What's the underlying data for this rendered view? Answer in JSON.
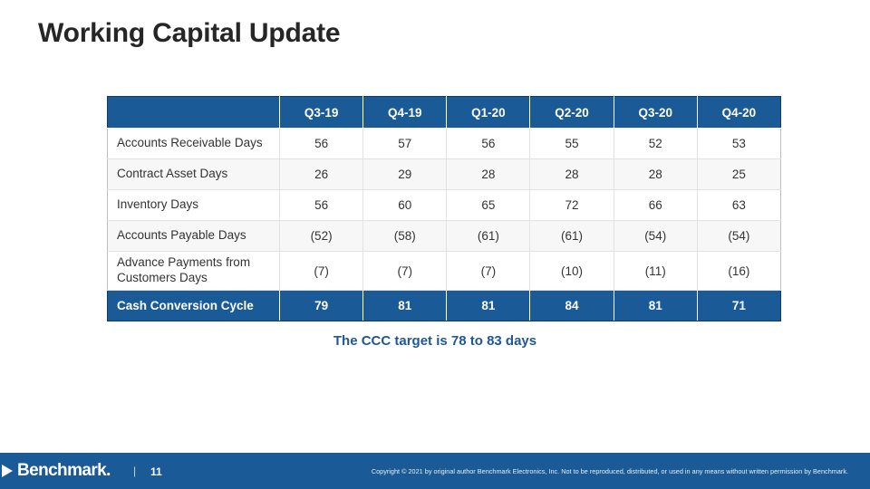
{
  "title": "Working Capital Update",
  "table": {
    "headers": [
      "",
      "Q3-19",
      "Q4-19",
      "Q1-20",
      "Q2-20",
      "Q3-20",
      "Q4-20"
    ],
    "rows": [
      {
        "label": "Accounts Receivable Days",
        "values": [
          "56",
          "57",
          "56",
          "55",
          "52",
          "53"
        ]
      },
      {
        "label": "Contract Asset Days",
        "values": [
          "26",
          "29",
          "28",
          "28",
          "28",
          "25"
        ]
      },
      {
        "label": "Inventory Days",
        "values": [
          "56",
          "60",
          "65",
          "72",
          "66",
          "63"
        ]
      },
      {
        "label": "Accounts Payable Days",
        "values": [
          "(52)",
          "(58)",
          "(61)",
          "(61)",
          "(54)",
          "(54)"
        ]
      },
      {
        "label": "Advance Payments from Customers Days",
        "values": [
          "(7)",
          "(7)",
          "(7)",
          "(10)",
          "(11)",
          "(16)"
        ]
      }
    ],
    "total": {
      "label": "Cash Conversion Cycle",
      "values": [
        "79",
        "81",
        "81",
        "84",
        "81",
        "71"
      ]
    }
  },
  "note": "The CCC target is 78 to 83 days",
  "footer": {
    "logo_text": "Benchmark.",
    "separator": "|",
    "page_number": "11",
    "copyright": "Copyright © 2021 by original author Benchmark Electronics, Inc. Not to be reproduced, distributed, or used in any means without written permission by Benchmark."
  },
  "colors": {
    "brand_blue": "#1a5a96",
    "note_blue": "#1f5797",
    "title": "#262626"
  }
}
